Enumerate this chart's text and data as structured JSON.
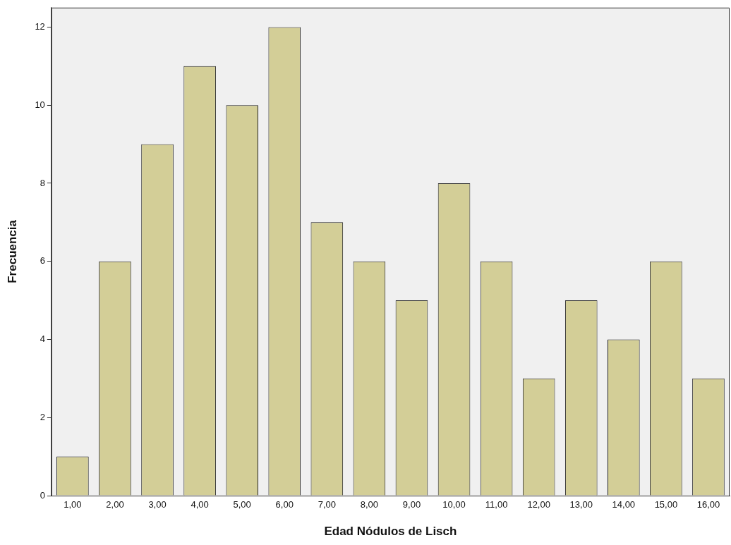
{
  "chart_data": {
    "type": "bar",
    "xlabel": "Edad Nódulos de Lisch",
    "ylabel": "Frecuencia",
    "categories": [
      "1,00",
      "2,00",
      "3,00",
      "4,00",
      "5,00",
      "6,00",
      "7,00",
      "8,00",
      "9,00",
      "10,00",
      "11,00",
      "12,00",
      "13,00",
      "14,00",
      "15,00",
      "16,00"
    ],
    "values": [
      1,
      6,
      9,
      11,
      10,
      12,
      7,
      6,
      5,
      8,
      6,
      3,
      5,
      4,
      6,
      3
    ],
    "color": "#d3ce97",
    "ylim": [
      0,
      12.5
    ],
    "yticks": [
      0,
      2,
      4,
      6,
      8,
      10,
      12
    ],
    "grid": false,
    "legend": false
  }
}
